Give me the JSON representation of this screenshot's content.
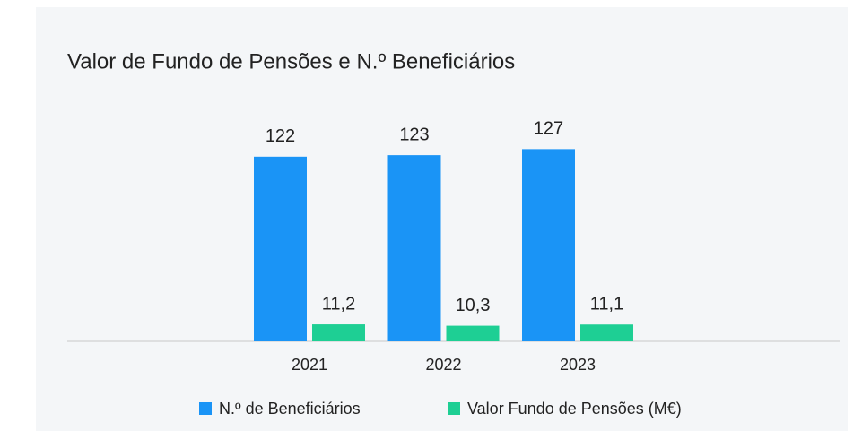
{
  "chart_data": {
    "type": "bar",
    "title": "Valor de Fundo de Pensões e N.º Beneficiários",
    "categories": [
      "2021",
      "2022",
      "2023"
    ],
    "series": [
      {
        "name": "N.º de Beneficiários",
        "color": "#1a94f6",
        "values": [
          122,
          123,
          127
        ]
      },
      {
        "name": "Valor Fundo de Pensões (M€)",
        "color": "#1ecf94",
        "values": [
          11.2,
          10.3,
          11.1
        ],
        "value_labels": [
          "11,2",
          "10,3",
          "11,1"
        ]
      }
    ]
  }
}
